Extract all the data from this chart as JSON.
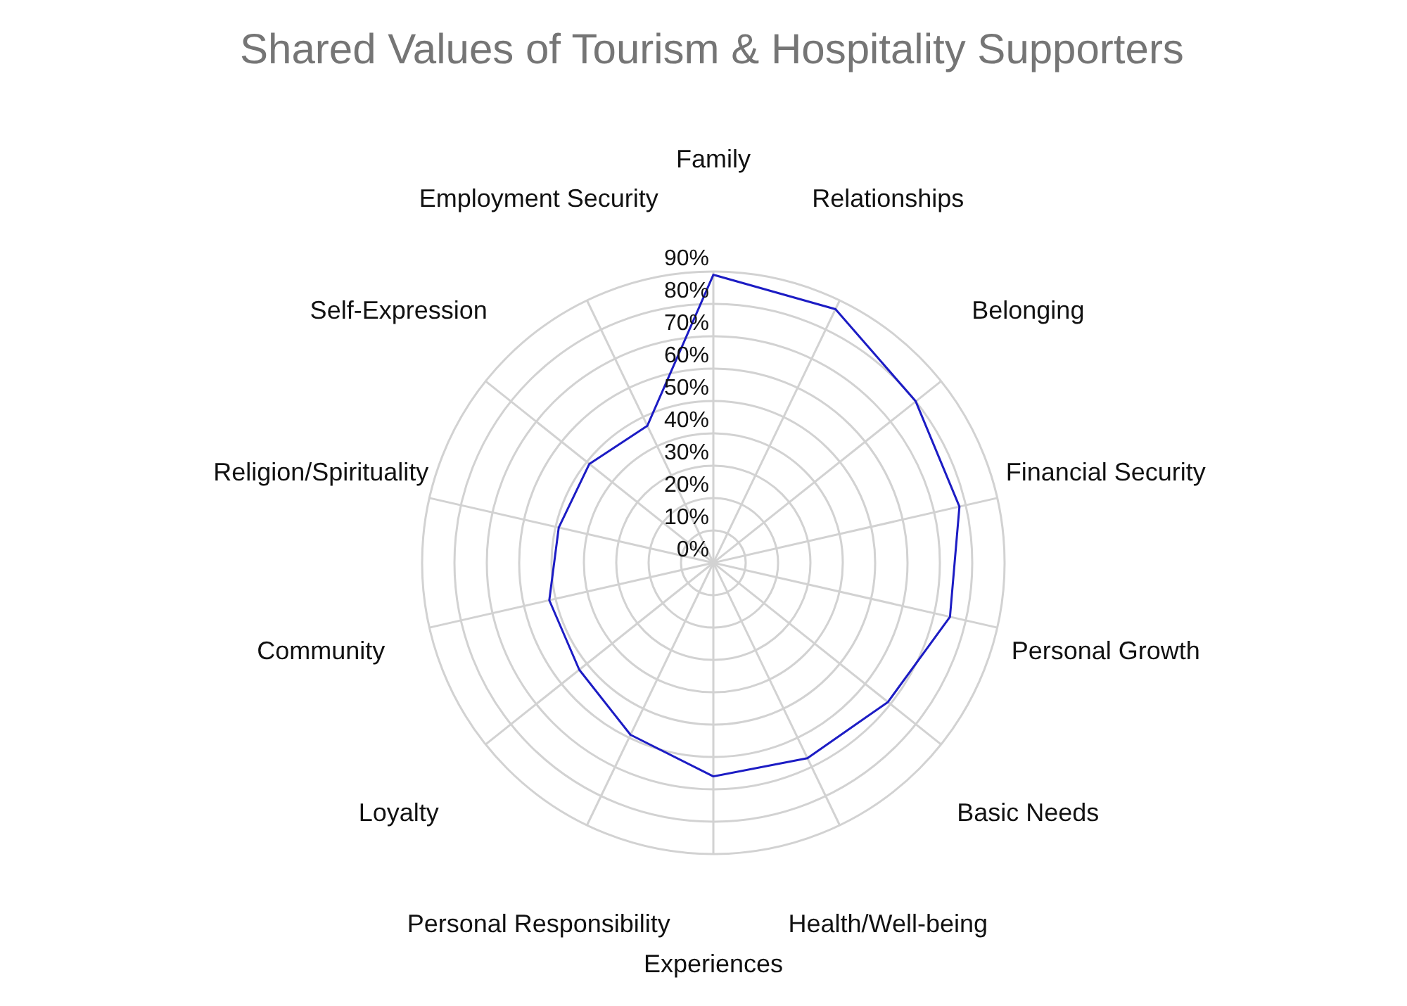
{
  "chart_data": {
    "type": "radar",
    "title": "Shared Values of Tourism & Hospitality Supporters",
    "categories": [
      "Family",
      "Relationships",
      "Belonging",
      "Financial Security",
      "Personal Growth",
      "Basic Needs",
      "Health/Well-being",
      "Experiences",
      "Personal Responsibility",
      "Loyalty",
      "Community",
      "Religion/Spirituality",
      "Self-Expression",
      "Employment Security"
    ],
    "series": [
      {
        "color": "#1c1cc4",
        "values": [
          89,
          87,
          80,
          78,
          75,
          69,
          67,
          66,
          59,
          53,
          52,
          49,
          49,
          47
        ]
      }
    ],
    "ylim": [
      0,
      90
    ],
    "yticks": [
      {
        "value": 0,
        "label": "0%"
      },
      {
        "value": 10,
        "label": "10%"
      },
      {
        "value": 20,
        "label": "20%"
      },
      {
        "value": 30,
        "label": "30%"
      },
      {
        "value": 40,
        "label": "40%"
      },
      {
        "value": 50,
        "label": "50%"
      },
      {
        "value": 60,
        "label": "60%"
      },
      {
        "value": 70,
        "label": "70%"
      },
      {
        "value": 80,
        "label": "80%"
      },
      {
        "value": 90,
        "label": "90%"
      }
    ],
    "grid": true,
    "marker": "none"
  }
}
